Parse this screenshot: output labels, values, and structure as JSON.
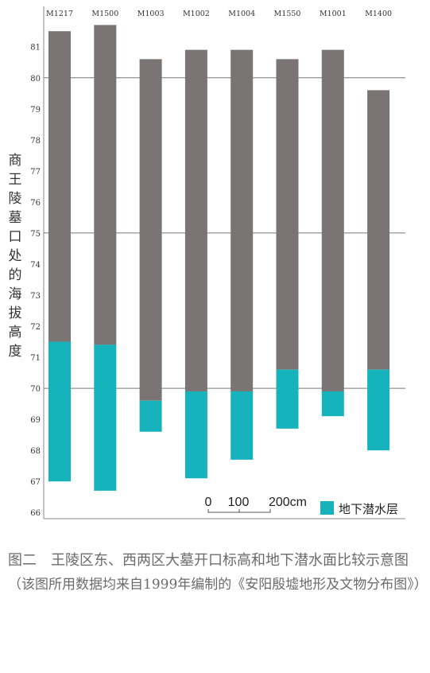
{
  "chart_data": {
    "type": "bar",
    "categories": [
      "M1217",
      "M1500",
      "M1003",
      "M1002",
      "M1004",
      "M1550",
      "M1001",
      "M1400"
    ],
    "series": [
      {
        "name": "",
        "role": "tomb-opening-elevation",
        "color": "#7a7474",
        "values": [
          81.5,
          81.7,
          80.6,
          80.9,
          80.9,
          80.6,
          80.9,
          79.6
        ]
      },
      {
        "name": "地下潜水层",
        "role": "groundwater-layer",
        "color": "#17b3bd",
        "bottoms": [
          67.0,
          66.7,
          68.6,
          67.1,
          67.7,
          68.7,
          69.1,
          68.0
        ],
        "tops": [
          71.5,
          71.4,
          69.6,
          69.9,
          69.9,
          70.6,
          69.9,
          70.6
        ]
      }
    ],
    "yticks": [
      66,
      67,
      68,
      69,
      70,
      71,
      72,
      73,
      74,
      75,
      76,
      77,
      78,
      79,
      80,
      81
    ],
    "ylim": [
      65.8,
      82.3
    ],
    "gridlines": [
      70,
      75,
      80
    ],
    "ylabel": "商王陵墓口处的海拔高度",
    "xlabel": "",
    "legend": {
      "label": "地下潜水层",
      "color": "#17b3bd",
      "position": "bottom-right"
    },
    "scale_bar": {
      "labels": [
        "0",
        "100",
        "200cm"
      ]
    },
    "title": ""
  },
  "caption": {
    "title": "图二　王陵区东、西两区大墓开口标高和地下潜水面比较示意图",
    "note": "（该图所用数据均来自1999年编制的《安阳殷墟地形及文物分布图》）"
  }
}
